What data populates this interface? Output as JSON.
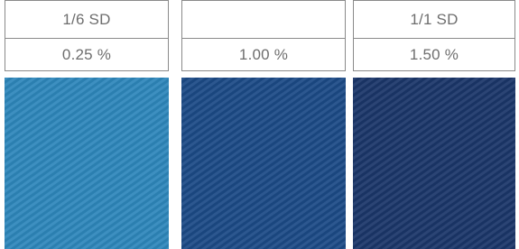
{
  "swatches": [
    {
      "shade": "1/6 SD",
      "percent": "0.25 %"
    },
    {
      "percent": "1.00 %"
    },
    {
      "shade": "1/1 SD",
      "percent": "1.50 %"
    }
  ]
}
